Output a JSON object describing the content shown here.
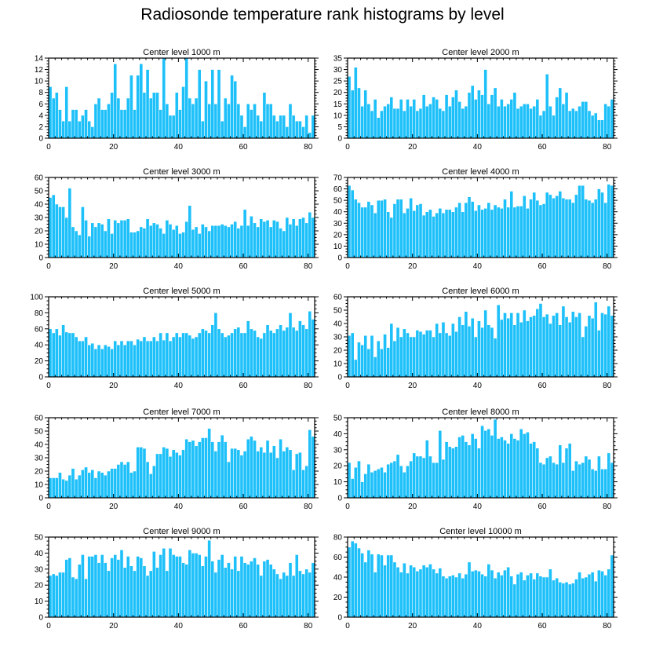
{
  "title": "Radiosonde temperature rank histograms by level",
  "colors": {
    "bar": "#1ec0fa",
    "bar_edge": "#ffffff",
    "axis": "#000000"
  },
  "chart_data": [
    {
      "type": "bar",
      "title": "Center level 1000 m",
      "xlim": [
        0,
        82
      ],
      "ylim": [
        0,
        14
      ],
      "xticks": [
        0,
        20,
        40,
        60,
        80
      ],
      "yticks": [
        0,
        2,
        4,
        6,
        8,
        10,
        12,
        14
      ],
      "values": [
        9,
        7,
        8,
        5,
        3,
        9,
        3,
        5,
        5,
        3,
        4,
        5,
        3,
        2,
        6,
        7,
        5,
        5,
        6,
        8,
        13,
        7,
        5,
        5,
        7,
        11,
        5,
        11,
        13,
        8,
        12,
        7,
        8,
        8,
        5,
        14,
        6,
        4,
        4,
        8,
        5,
        9,
        14,
        7,
        6,
        7,
        12,
        3,
        10,
        6,
        12,
        6,
        12,
        3,
        7,
        6,
        11,
        10,
        6,
        4,
        2,
        6,
        5,
        6,
        4,
        3,
        8,
        6,
        6,
        4,
        3,
        4,
        4,
        2,
        6,
        4,
        3,
        3,
        2,
        4,
        1,
        4
      ]
    },
    {
      "type": "bar",
      "title": "Center level 2000 m",
      "xlim": [
        0,
        82
      ],
      "ylim": [
        0,
        35
      ],
      "xticks": [
        0,
        20,
        40,
        60,
        80
      ],
      "yticks": [
        0,
        5,
        10,
        15,
        20,
        25,
        30,
        35
      ],
      "values": [
        27,
        21,
        31,
        22,
        14,
        21,
        15,
        12,
        17,
        9,
        12,
        14,
        15,
        18,
        13,
        13,
        17,
        12,
        17,
        14,
        17,
        12,
        13,
        19,
        14,
        15,
        18,
        17,
        13,
        12,
        19,
        14,
        18,
        21,
        16,
        13,
        14,
        20,
        23,
        17,
        21,
        19,
        30,
        15,
        19,
        22,
        14,
        17,
        14,
        15,
        17,
        20,
        13,
        14,
        15,
        15,
        13,
        14,
        17,
        10,
        12,
        28,
        14,
        10,
        18,
        22,
        15,
        20,
        12,
        13,
        12,
        14,
        16,
        16,
        12,
        10,
        11,
        8,
        8,
        15,
        14,
        17
      ]
    },
    {
      "type": "bar",
      "title": "Center level 3000 m",
      "xlim": [
        0,
        82
      ],
      "ylim": [
        0,
        60
      ],
      "xticks": [
        0,
        20,
        40,
        60,
        80
      ],
      "yticks": [
        0,
        10,
        20,
        30,
        40,
        50,
        60
      ],
      "values": [
        45,
        47,
        40,
        38,
        38,
        30,
        52,
        23,
        20,
        17,
        38,
        28,
        16,
        26,
        23,
        26,
        25,
        20,
        29,
        18,
        28,
        26,
        28,
        28,
        29,
        19,
        19,
        20,
        23,
        22,
        29,
        24,
        26,
        25,
        22,
        18,
        28,
        25,
        21,
        24,
        18,
        19,
        27,
        39,
        21,
        23,
        18,
        25,
        23,
        20,
        24,
        24,
        24,
        25,
        24,
        23,
        25,
        27,
        22,
        24,
        36,
        24,
        31,
        26,
        23,
        29,
        27,
        28,
        23,
        28,
        27,
        22,
        20,
        30,
        25,
        29,
        24,
        29,
        30,
        26,
        34,
        30
      ]
    },
    {
      "type": "bar",
      "title": "Center level 4000 m",
      "xlim": [
        0,
        82
      ],
      "ylim": [
        0,
        70
      ],
      "xticks": [
        0,
        20,
        40,
        60,
        80
      ],
      "yticks": [
        0,
        10,
        20,
        30,
        40,
        50,
        60,
        70
      ],
      "values": [
        63,
        59,
        51,
        48,
        44,
        44,
        49,
        46,
        39,
        50,
        50,
        51,
        40,
        35,
        47,
        51,
        51,
        39,
        43,
        52,
        41,
        46,
        47,
        37,
        40,
        42,
        36,
        39,
        43,
        39,
        42,
        42,
        40,
        44,
        48,
        40,
        48,
        53,
        49,
        41,
        46,
        42,
        43,
        48,
        42,
        46,
        44,
        43,
        51,
        44,
        58,
        44,
        45,
        45,
        54,
        43,
        51,
        57,
        50,
        46,
        47,
        57,
        55,
        52,
        54,
        58,
        52,
        51,
        51,
        48,
        55,
        63,
        63,
        51,
        50,
        48,
        51,
        60,
        57,
        48,
        64,
        63
      ]
    },
    {
      "type": "bar",
      "title": "Center level 5000 m",
      "xlim": [
        0,
        82
      ],
      "ylim": [
        0,
        100
      ],
      "xticks": [
        0,
        20,
        40,
        60,
        80
      ],
      "yticks": [
        0,
        20,
        40,
        60,
        80,
        100
      ],
      "values": [
        60,
        55,
        60,
        52,
        65,
        56,
        55,
        55,
        50,
        45,
        45,
        50,
        40,
        42,
        35,
        40,
        35,
        40,
        38,
        35,
        45,
        40,
        45,
        40,
        45,
        45,
        40,
        47,
        45,
        50,
        45,
        45,
        50,
        45,
        55,
        46,
        55,
        45,
        50,
        55,
        50,
        55,
        55,
        52,
        48,
        50,
        55,
        60,
        58,
        55,
        65,
        80,
        60,
        55,
        50,
        52,
        55,
        60,
        62,
        55,
        55,
        70,
        60,
        58,
        50,
        48,
        55,
        65,
        58,
        55,
        60,
        65,
        58,
        62,
        80,
        62,
        58,
        70,
        65,
        60,
        82,
        72
      ]
    },
    {
      "type": "bar",
      "title": "Center level 6000 m",
      "xlim": [
        0,
        82
      ],
      "ylim": [
        0,
        60
      ],
      "xticks": [
        0,
        20,
        40,
        60,
        80
      ],
      "yticks": [
        0,
        10,
        20,
        30,
        40,
        50,
        60
      ],
      "values": [
        31,
        33,
        13,
        26,
        24,
        31,
        21,
        31,
        15,
        27,
        21,
        32,
        22,
        40,
        27,
        37,
        30,
        36,
        33,
        30,
        30,
        35,
        34,
        32,
        35,
        35,
        30,
        40,
        33,
        41,
        33,
        31,
        40,
        34,
        45,
        39,
        49,
        38,
        44,
        30,
        42,
        37,
        50,
        39,
        37,
        29,
        54,
        43,
        48,
        44,
        48,
        39,
        48,
        41,
        50,
        42,
        45,
        46,
        51,
        55,
        45,
        47,
        40,
        46,
        48,
        39,
        53,
        45,
        41,
        49,
        45,
        48,
        30,
        38,
        46,
        44,
        56,
        35,
        48,
        47,
        53,
        46
      ]
    },
    {
      "type": "bar",
      "title": "Center level 7000 m",
      "xlim": [
        0,
        82
      ],
      "ylim": [
        0,
        60
      ],
      "xticks": [
        0,
        20,
        40,
        60,
        80
      ],
      "yticks": [
        0,
        10,
        20,
        30,
        40,
        50,
        60
      ],
      "values": [
        15,
        15,
        15,
        19,
        14,
        13,
        17,
        22,
        14,
        17,
        21,
        23,
        19,
        21,
        15,
        20,
        19,
        17,
        20,
        22,
        22,
        25,
        27,
        25,
        27,
        19,
        20,
        38,
        38,
        37,
        27,
        18,
        24,
        33,
        33,
        38,
        37,
        31,
        36,
        34,
        32,
        36,
        44,
        42,
        43,
        39,
        42,
        45,
        45,
        52,
        42,
        35,
        42,
        47,
        42,
        27,
        37,
        37,
        36,
        32,
        35,
        44,
        46,
        43,
        35,
        38,
        34,
        43,
        34,
        39,
        30,
        44,
        35,
        38,
        36,
        21,
        33,
        34,
        21,
        24,
        51,
        46
      ]
    },
    {
      "type": "bar",
      "title": "Center level 8000 m",
      "xlim": [
        0,
        82
      ],
      "ylim": [
        0,
        50
      ],
      "xticks": [
        0,
        20,
        40,
        60,
        80
      ],
      "yticks": [
        0,
        10,
        20,
        30,
        40,
        50
      ],
      "values": [
        22,
        12,
        19,
        23,
        10,
        15,
        21,
        16,
        17,
        18,
        19,
        16,
        21,
        22,
        23,
        27,
        20,
        16,
        20,
        23,
        28,
        26,
        26,
        25,
        36,
        26,
        22,
        22,
        42,
        24,
        35,
        32,
        31,
        32,
        38,
        39,
        35,
        33,
        40,
        37,
        31,
        45,
        42,
        43,
        39,
        49,
        37,
        38,
        36,
        34,
        40,
        37,
        36,
        43,
        40,
        41,
        34,
        35,
        31,
        22,
        21,
        25,
        26,
        22,
        21,
        33,
        22,
        31,
        34,
        17,
        23,
        21,
        22,
        26,
        24,
        18,
        17,
        26,
        18,
        18,
        28,
        22
      ]
    },
    {
      "type": "bar",
      "title": "Center level 9000 m",
      "xlim": [
        0,
        82
      ],
      "ylim": [
        0,
        50
      ],
      "xticks": [
        0,
        20,
        40,
        60,
        80
      ],
      "yticks": [
        0,
        10,
        20,
        30,
        40,
        50
      ],
      "values": [
        26,
        27,
        26,
        28,
        28,
        36,
        37,
        25,
        24,
        33,
        39,
        24,
        38,
        38,
        39,
        34,
        39,
        34,
        29,
        37,
        39,
        36,
        42,
        31,
        38,
        32,
        29,
        38,
        37,
        32,
        26,
        29,
        41,
        31,
        39,
        43,
        29,
        43,
        39,
        38,
        38,
        34,
        33,
        42,
        40,
        40,
        39,
        32,
        38,
        48,
        35,
        28,
        36,
        39,
        31,
        34,
        30,
        38,
        29,
        38,
        34,
        33,
        35,
        37,
        33,
        26,
        35,
        36,
        33,
        30,
        27,
        24,
        28,
        26,
        34,
        26,
        39,
        29,
        27,
        30,
        28,
        34
      ]
    },
    {
      "type": "bar",
      "title": "Center level 10000 m",
      "xlim": [
        0,
        82
      ],
      "ylim": [
        0,
        80
      ],
      "xticks": [
        0,
        20,
        40,
        60,
        80
      ],
      "yticks": [
        0,
        20,
        40,
        60,
        80
      ],
      "values": [
        70,
        76,
        74,
        69,
        64,
        55,
        67,
        63,
        45,
        63,
        62,
        52,
        62,
        62,
        55,
        50,
        45,
        54,
        44,
        52,
        50,
        46,
        48,
        52,
        50,
        53,
        48,
        44,
        49,
        41,
        39,
        41,
        42,
        40,
        44,
        39,
        43,
        55,
        46,
        47,
        46,
        43,
        41,
        53,
        47,
        39,
        45,
        42,
        47,
        50,
        41,
        33,
        43,
        45,
        37,
        42,
        44,
        38,
        44,
        41,
        40,
        40,
        48,
        37,
        39,
        35,
        34,
        35,
        33,
        34,
        38,
        45,
        39,
        40,
        43,
        45,
        36,
        47,
        46,
        42,
        48,
        62
      ]
    }
  ]
}
